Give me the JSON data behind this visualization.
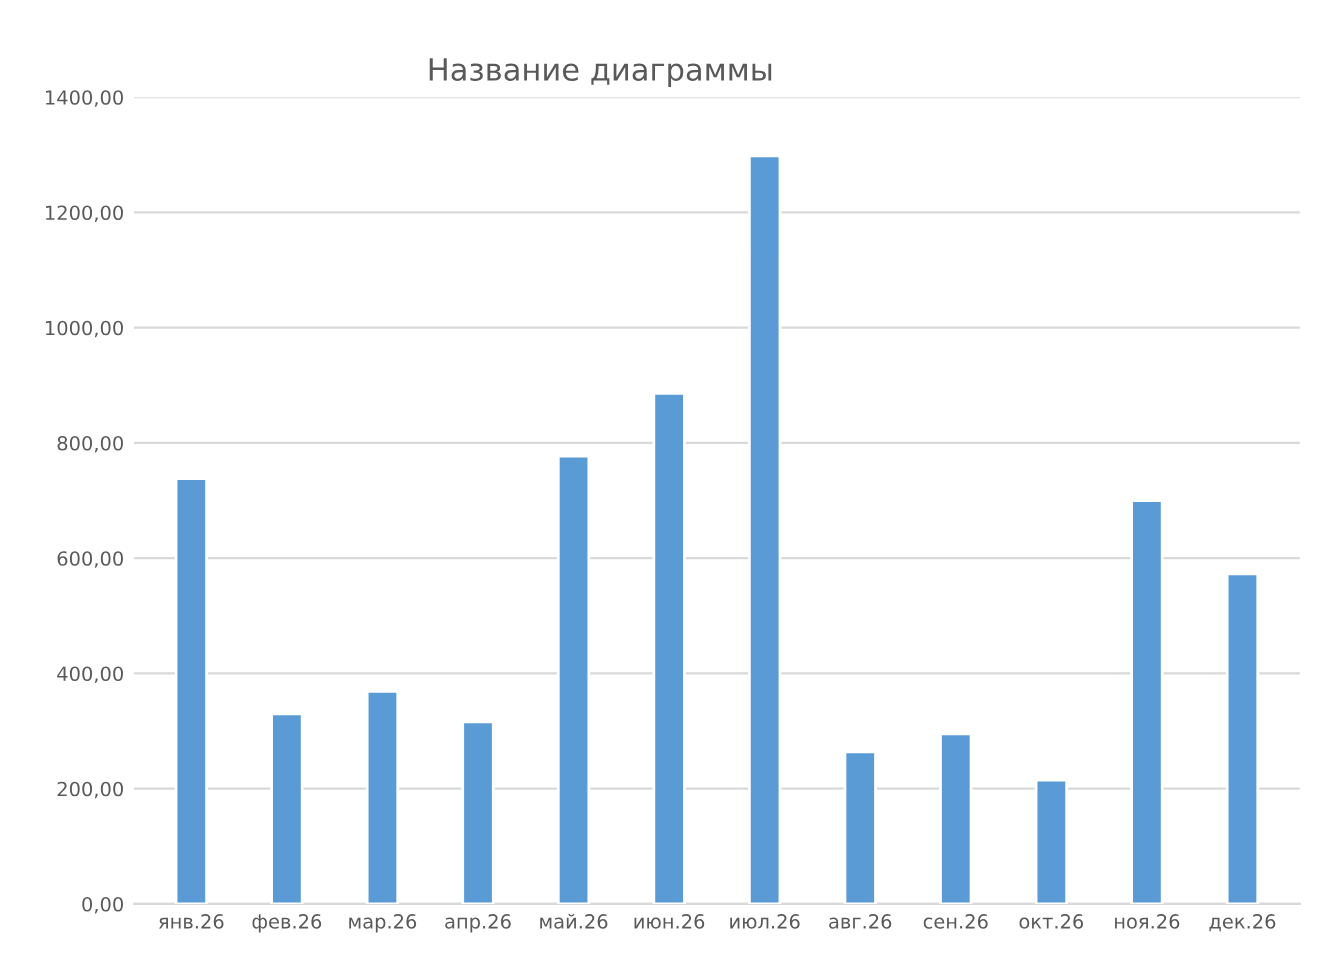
{
  "chart_data": {
    "type": "bar",
    "title": "Название диаграммы",
    "categories": [
      "янв.26",
      "фев.26",
      "мар.26",
      "апр.26",
      "май.26",
      "июн.26",
      "июл.26",
      "авг.26",
      "сен.26",
      "окт.26",
      "ноя.26",
      "дек.26"
    ],
    "values": [
      738,
      330,
      369,
      316,
      777,
      886,
      1298,
      264,
      295,
      215,
      700,
      573
    ],
    "color": "#5b9bd5",
    "ylim": [
      0,
      1400
    ],
    "yticks": [
      {
        "value": 0,
        "label": "0,00"
      },
      {
        "value": 200,
        "label": "200,00"
      },
      {
        "value": 400,
        "label": "400,00"
      },
      {
        "value": 600,
        "label": "600,00"
      },
      {
        "value": 800,
        "label": "800,00"
      },
      {
        "value": 1000,
        "label": "1000,00"
      },
      {
        "value": 1200,
        "label": "1200,00"
      },
      {
        "value": 1400,
        "label": "1400,00"
      }
    ],
    "grid": "y",
    "legend": false
  }
}
